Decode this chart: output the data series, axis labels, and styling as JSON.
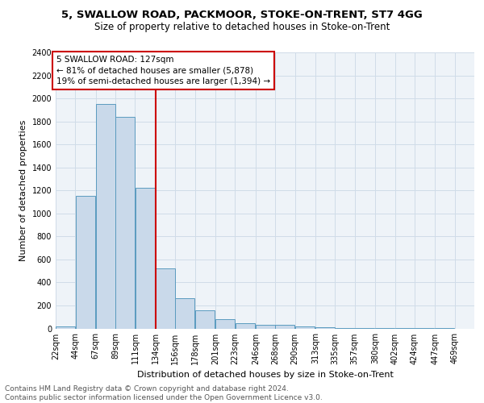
{
  "title1": "5, SWALLOW ROAD, PACKMOOR, STOKE-ON-TRENT, ST7 4GG",
  "title2": "Size of property relative to detached houses in Stoke-on-Trent",
  "xlabel": "Distribution of detached houses by size in Stoke-on-Trent",
  "ylabel": "Number of detached properties",
  "footnote1": "Contains HM Land Registry data © Crown copyright and database right 2024.",
  "footnote2": "Contains public sector information licensed under the Open Government Licence v3.0.",
  "annotation_line1": "5 SWALLOW ROAD: 127sqm",
  "annotation_line2": "← 81% of detached houses are smaller (5,878)",
  "annotation_line3": "19% of semi-detached houses are larger (1,394) →",
  "bar_left_edges": [
    22,
    44,
    67,
    89,
    111,
    134,
    156,
    178,
    201,
    223,
    246,
    268,
    290,
    313,
    335,
    357,
    380,
    402,
    424,
    447
  ],
  "bar_widths": [
    22,
    22,
    22,
    22,
    22,
    22,
    22,
    22,
    22,
    22,
    22,
    22,
    22,
    22,
    22,
    22,
    22,
    22,
    22,
    22
  ],
  "bar_heights": [
    20,
    1150,
    1950,
    1840,
    1220,
    520,
    265,
    155,
    80,
    45,
    35,
    30,
    15,
    10,
    5,
    5,
    3,
    3,
    2,
    5
  ],
  "bar_face_color": "#c9d9ea",
  "bar_edge_color": "#5a9bbf",
  "vline_color": "#cc0000",
  "vline_x": 134,
  "annotation_box_color": "#cc0000",
  "ylim": [
    0,
    2400
  ],
  "yticks": [
    0,
    200,
    400,
    600,
    800,
    1000,
    1200,
    1400,
    1600,
    1800,
    2000,
    2200,
    2400
  ],
  "tick_labels": [
    "22sqm",
    "44sqm",
    "67sqm",
    "89sqm",
    "111sqm",
    "134sqm",
    "156sqm",
    "178sqm",
    "201sqm",
    "223sqm",
    "246sqm",
    "268sqm",
    "290sqm",
    "313sqm",
    "335sqm",
    "357sqm",
    "380sqm",
    "402sqm",
    "424sqm",
    "447sqm",
    "469sqm"
  ],
  "grid_color": "#d0dce8",
  "bg_color": "#eef3f8",
  "title1_fontsize": 9.5,
  "title2_fontsize": 8.5,
  "axis_label_fontsize": 8,
  "tick_fontsize": 7,
  "annotation_fontsize": 7.5,
  "footnote_fontsize": 6.5
}
